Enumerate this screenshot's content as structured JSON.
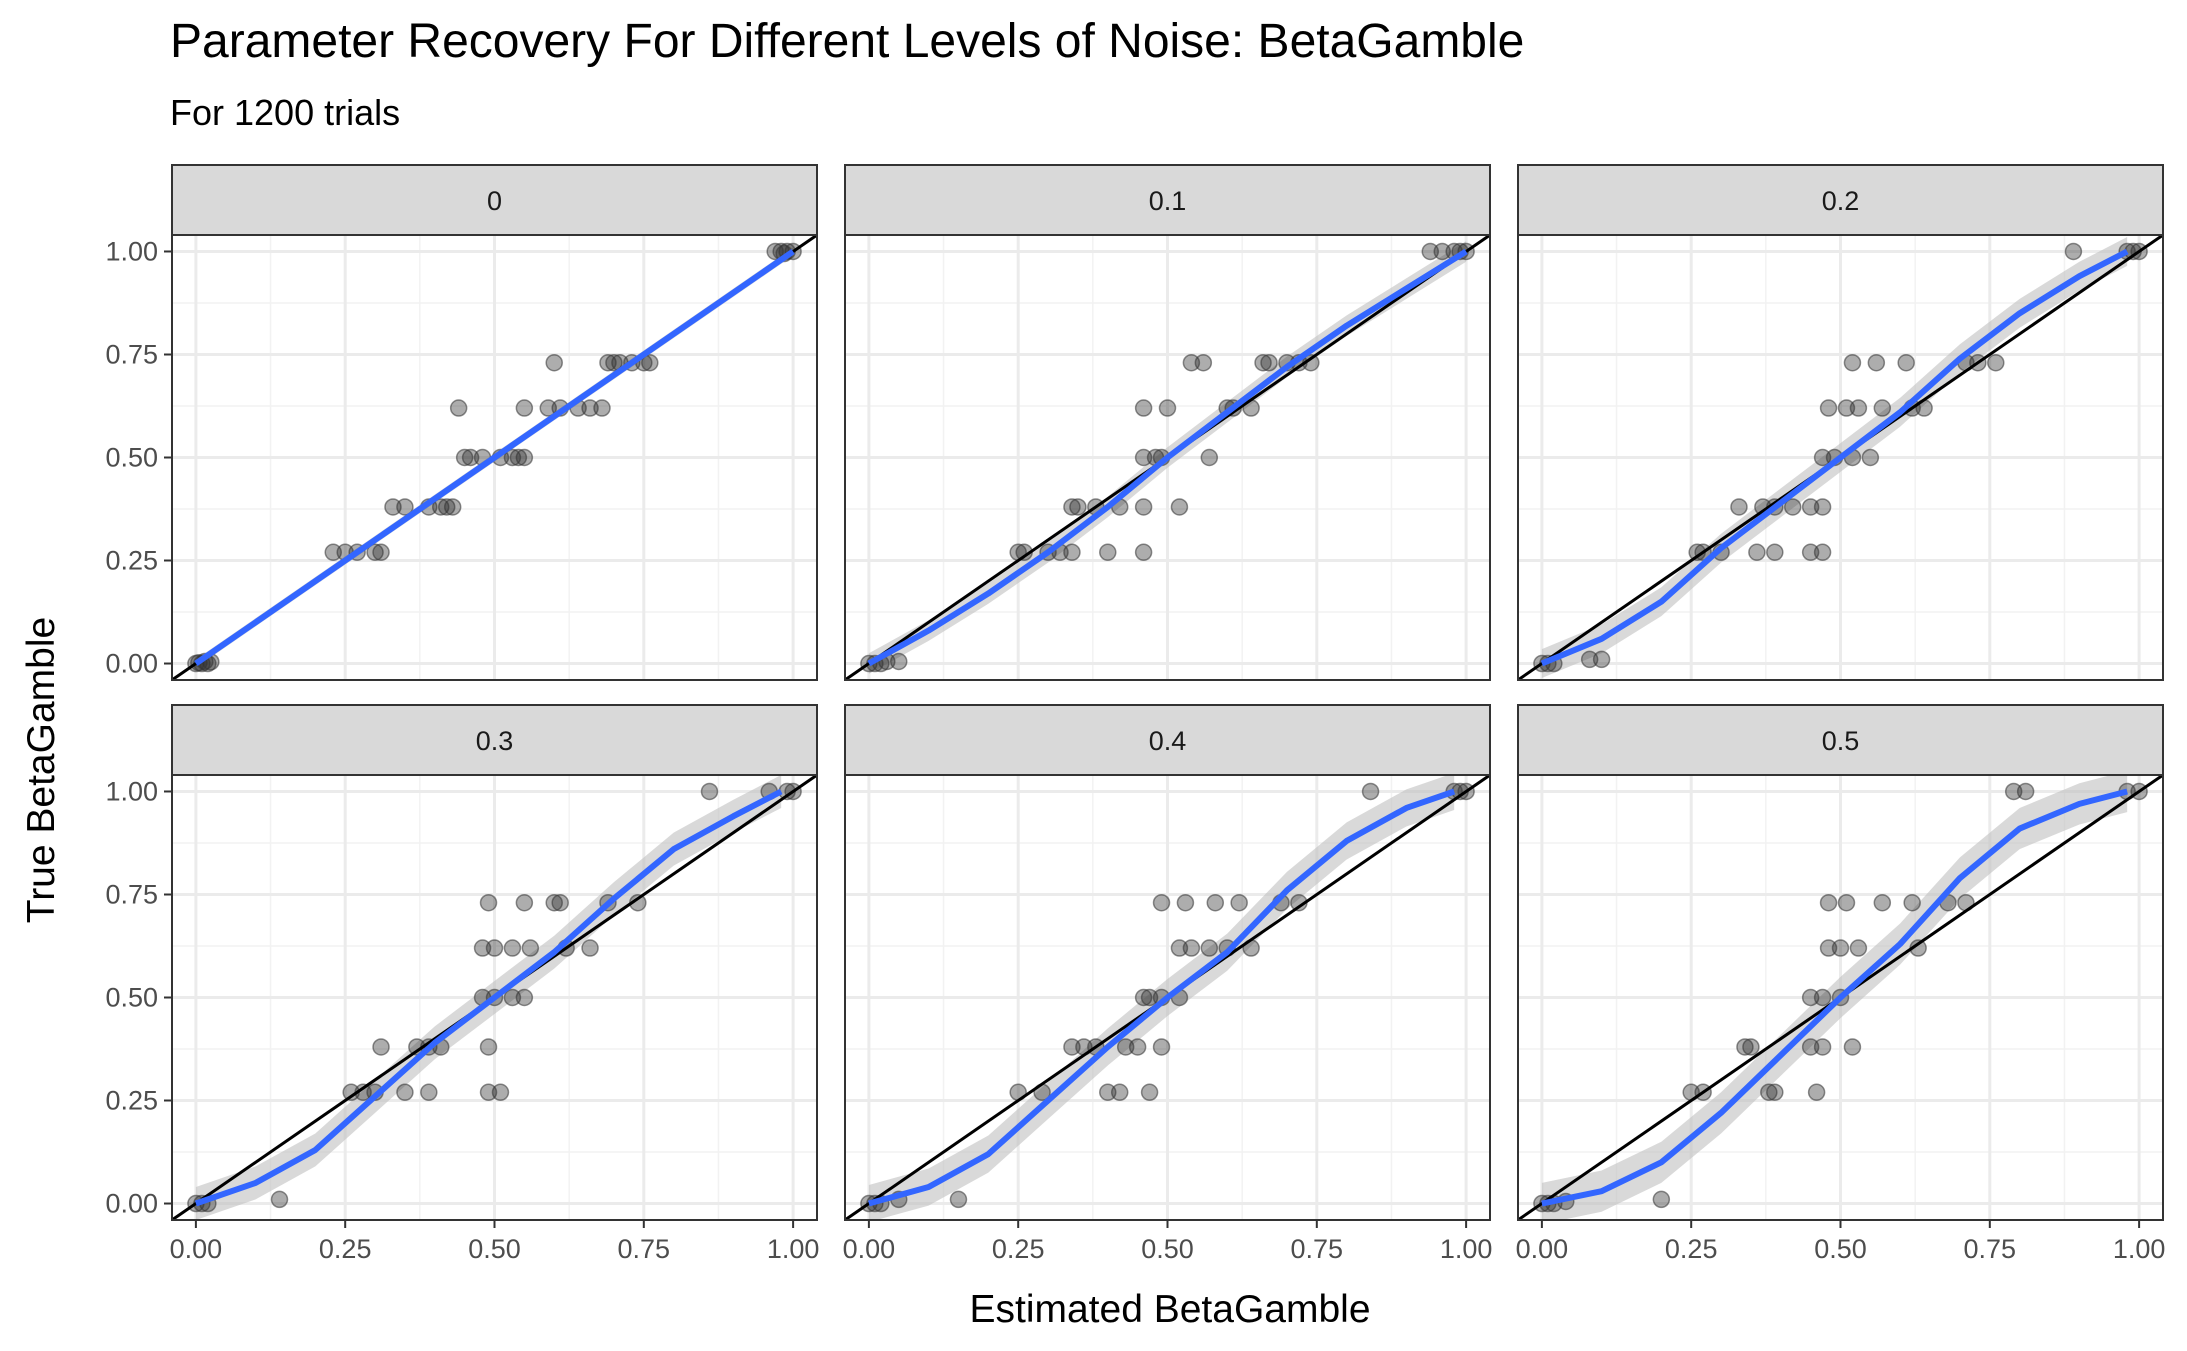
{
  "chart_data": {
    "type": "scatter",
    "title": "Parameter Recovery For Different Levels of Noise: BetaGamble",
    "subtitle": "For 1200 trials",
    "xlabel": "Estimated BetaGamble",
    "ylabel": "True BetaGamble",
    "xlim": [
      -0.04,
      1.04
    ],
    "ylim": [
      -0.04,
      1.04
    ],
    "xticks": [
      "0.00",
      "0.25",
      "0.50",
      "0.75",
      "1.00"
    ],
    "yticks": [
      "0.00",
      "0.25",
      "0.50",
      "0.75",
      "1.00"
    ],
    "grid": true,
    "reference_line": "identity",
    "colors": {
      "points": "#333333",
      "smooth": "#3366FF",
      "band": "#bfbfbf",
      "identity": "#000000",
      "strip": "#d9d9d9"
    },
    "panels": [
      {
        "label": "0",
        "points": [
          [
            0.0,
            0.0
          ],
          [
            0.01,
            0.0
          ],
          [
            0.02,
            0.0
          ],
          [
            0.015,
            0.005
          ],
          [
            0.005,
            0.002
          ],
          [
            0.025,
            0.004
          ],
          [
            0.23,
            0.27
          ],
          [
            0.25,
            0.27
          ],
          [
            0.27,
            0.27
          ],
          [
            0.3,
            0.27
          ],
          [
            0.31,
            0.27
          ],
          [
            0.33,
            0.38
          ],
          [
            0.35,
            0.38
          ],
          [
            0.39,
            0.38
          ],
          [
            0.41,
            0.38
          ],
          [
            0.42,
            0.38
          ],
          [
            0.43,
            0.38
          ],
          [
            0.45,
            0.5
          ],
          [
            0.46,
            0.5
          ],
          [
            0.48,
            0.5
          ],
          [
            0.51,
            0.5
          ],
          [
            0.53,
            0.5
          ],
          [
            0.54,
            0.5
          ],
          [
            0.55,
            0.5
          ],
          [
            0.44,
            0.62
          ],
          [
            0.55,
            0.62
          ],
          [
            0.59,
            0.62
          ],
          [
            0.61,
            0.62
          ],
          [
            0.64,
            0.62
          ],
          [
            0.66,
            0.62
          ],
          [
            0.68,
            0.62
          ],
          [
            0.6,
            0.73
          ],
          [
            0.69,
            0.73
          ],
          [
            0.7,
            0.73
          ],
          [
            0.71,
            0.73
          ],
          [
            0.73,
            0.73
          ],
          [
            0.75,
            0.73
          ],
          [
            0.76,
            0.73
          ],
          [
            0.97,
            1.0
          ],
          [
            0.98,
            1.0
          ],
          [
            0.99,
            1.0
          ],
          [
            1.0,
            1.0
          ],
          [
            0.985,
            0.995
          ]
        ],
        "smooth": [
          [
            0.0,
            0.0
          ],
          [
            0.25,
            0.25
          ],
          [
            0.5,
            0.5
          ],
          [
            0.75,
            0.75
          ],
          [
            1.0,
            1.0
          ]
        ],
        "band": 0.01
      },
      {
        "label": "0.1",
        "points": [
          [
            0.0,
            0.0
          ],
          [
            0.01,
            0.0
          ],
          [
            0.02,
            0.0
          ],
          [
            0.03,
            0.005
          ],
          [
            0.05,
            0.005
          ],
          [
            0.25,
            0.27
          ],
          [
            0.26,
            0.27
          ],
          [
            0.3,
            0.27
          ],
          [
            0.32,
            0.27
          ],
          [
            0.34,
            0.27
          ],
          [
            0.4,
            0.27
          ],
          [
            0.46,
            0.27
          ],
          [
            0.34,
            0.38
          ],
          [
            0.35,
            0.38
          ],
          [
            0.38,
            0.38
          ],
          [
            0.42,
            0.38
          ],
          [
            0.46,
            0.38
          ],
          [
            0.52,
            0.38
          ],
          [
            0.46,
            0.5
          ],
          [
            0.48,
            0.5
          ],
          [
            0.49,
            0.5
          ],
          [
            0.57,
            0.5
          ],
          [
            0.46,
            0.62
          ],
          [
            0.5,
            0.62
          ],
          [
            0.6,
            0.62
          ],
          [
            0.61,
            0.62
          ],
          [
            0.64,
            0.62
          ],
          [
            0.54,
            0.73
          ],
          [
            0.56,
            0.73
          ],
          [
            0.66,
            0.73
          ],
          [
            0.67,
            0.73
          ],
          [
            0.7,
            0.73
          ],
          [
            0.72,
            0.73
          ],
          [
            0.74,
            0.73
          ],
          [
            0.94,
            1.0
          ],
          [
            0.96,
            1.0
          ],
          [
            0.98,
            1.0
          ],
          [
            0.99,
            1.0
          ],
          [
            1.0,
            1.0
          ]
        ],
        "smooth": [
          [
            0.0,
            0.0
          ],
          [
            0.1,
            0.08
          ],
          [
            0.2,
            0.17
          ],
          [
            0.3,
            0.27
          ],
          [
            0.4,
            0.38
          ],
          [
            0.5,
            0.5
          ],
          [
            0.6,
            0.61
          ],
          [
            0.7,
            0.72
          ],
          [
            0.8,
            0.82
          ],
          [
            0.9,
            0.91
          ],
          [
            1.0,
            1.0
          ]
        ],
        "band": 0.025
      },
      {
        "label": "0.2",
        "points": [
          [
            0.0,
            0.0
          ],
          [
            0.01,
            0.0
          ],
          [
            0.02,
            0.0
          ],
          [
            0.08,
            0.01
          ],
          [
            0.1,
            0.01
          ],
          [
            0.26,
            0.27
          ],
          [
            0.27,
            0.27
          ],
          [
            0.3,
            0.27
          ],
          [
            0.36,
            0.27
          ],
          [
            0.39,
            0.27
          ],
          [
            0.45,
            0.27
          ],
          [
            0.47,
            0.27
          ],
          [
            0.33,
            0.38
          ],
          [
            0.37,
            0.38
          ],
          [
            0.39,
            0.38
          ],
          [
            0.42,
            0.38
          ],
          [
            0.45,
            0.38
          ],
          [
            0.47,
            0.38
          ],
          [
            0.47,
            0.5
          ],
          [
            0.49,
            0.5
          ],
          [
            0.52,
            0.5
          ],
          [
            0.55,
            0.5
          ],
          [
            0.48,
            0.62
          ],
          [
            0.51,
            0.62
          ],
          [
            0.53,
            0.62
          ],
          [
            0.57,
            0.62
          ],
          [
            0.62,
            0.62
          ],
          [
            0.64,
            0.62
          ],
          [
            0.52,
            0.73
          ],
          [
            0.56,
            0.73
          ],
          [
            0.61,
            0.73
          ],
          [
            0.71,
            0.73
          ],
          [
            0.73,
            0.73
          ],
          [
            0.76,
            0.73
          ],
          [
            0.89,
            1.0
          ],
          [
            0.98,
            1.0
          ],
          [
            0.99,
            1.0
          ],
          [
            1.0,
            1.0
          ]
        ],
        "smooth": [
          [
            0.0,
            0.0
          ],
          [
            0.1,
            0.06
          ],
          [
            0.2,
            0.15
          ],
          [
            0.3,
            0.28
          ],
          [
            0.4,
            0.39
          ],
          [
            0.5,
            0.5
          ],
          [
            0.6,
            0.61
          ],
          [
            0.7,
            0.74
          ],
          [
            0.8,
            0.85
          ],
          [
            0.9,
            0.94
          ],
          [
            0.98,
            1.0
          ]
        ],
        "band": 0.035
      },
      {
        "label": "0.3",
        "points": [
          [
            0.0,
            0.0
          ],
          [
            0.01,
            0.0
          ],
          [
            0.02,
            0.0
          ],
          [
            0.14,
            0.01
          ],
          [
            0.26,
            0.27
          ],
          [
            0.28,
            0.27
          ],
          [
            0.3,
            0.27
          ],
          [
            0.35,
            0.27
          ],
          [
            0.39,
            0.27
          ],
          [
            0.49,
            0.27
          ],
          [
            0.51,
            0.27
          ],
          [
            0.31,
            0.38
          ],
          [
            0.37,
            0.38
          ],
          [
            0.39,
            0.38
          ],
          [
            0.41,
            0.38
          ],
          [
            0.49,
            0.38
          ],
          [
            0.48,
            0.5
          ],
          [
            0.5,
            0.5
          ],
          [
            0.53,
            0.5
          ],
          [
            0.55,
            0.5
          ],
          [
            0.48,
            0.62
          ],
          [
            0.5,
            0.62
          ],
          [
            0.53,
            0.62
          ],
          [
            0.56,
            0.62
          ],
          [
            0.62,
            0.62
          ],
          [
            0.66,
            0.62
          ],
          [
            0.49,
            0.73
          ],
          [
            0.55,
            0.73
          ],
          [
            0.6,
            0.73
          ],
          [
            0.61,
            0.73
          ],
          [
            0.69,
            0.73
          ],
          [
            0.74,
            0.73
          ],
          [
            0.86,
            1.0
          ],
          [
            0.96,
            1.0
          ],
          [
            0.99,
            1.0
          ],
          [
            1.0,
            1.0
          ]
        ],
        "smooth": [
          [
            0.0,
            0.0
          ],
          [
            0.1,
            0.05
          ],
          [
            0.2,
            0.13
          ],
          [
            0.3,
            0.26
          ],
          [
            0.4,
            0.39
          ],
          [
            0.5,
            0.5
          ],
          [
            0.6,
            0.61
          ],
          [
            0.7,
            0.74
          ],
          [
            0.8,
            0.86
          ],
          [
            0.9,
            0.94
          ],
          [
            0.98,
            1.0
          ]
        ],
        "band": 0.04
      },
      {
        "label": "0.4",
        "points": [
          [
            0.0,
            0.0
          ],
          [
            0.01,
            0.0
          ],
          [
            0.02,
            0.0
          ],
          [
            0.05,
            0.01
          ],
          [
            0.15,
            0.01
          ],
          [
            0.25,
            0.27
          ],
          [
            0.29,
            0.27
          ],
          [
            0.4,
            0.27
          ],
          [
            0.42,
            0.27
          ],
          [
            0.47,
            0.27
          ],
          [
            0.34,
            0.38
          ],
          [
            0.36,
            0.38
          ],
          [
            0.38,
            0.38
          ],
          [
            0.43,
            0.38
          ],
          [
            0.45,
            0.38
          ],
          [
            0.49,
            0.38
          ],
          [
            0.46,
            0.5
          ],
          [
            0.47,
            0.5
          ],
          [
            0.49,
            0.5
          ],
          [
            0.52,
            0.5
          ],
          [
            0.52,
            0.62
          ],
          [
            0.54,
            0.62
          ],
          [
            0.57,
            0.62
          ],
          [
            0.6,
            0.62
          ],
          [
            0.64,
            0.62
          ],
          [
            0.49,
            0.73
          ],
          [
            0.53,
            0.73
          ],
          [
            0.58,
            0.73
          ],
          [
            0.62,
            0.73
          ],
          [
            0.69,
            0.73
          ],
          [
            0.72,
            0.73
          ],
          [
            0.84,
            1.0
          ],
          [
            0.98,
            1.0
          ],
          [
            0.99,
            1.0
          ],
          [
            1.0,
            1.0
          ]
        ],
        "smooth": [
          [
            0.0,
            0.0
          ],
          [
            0.1,
            0.04
          ],
          [
            0.2,
            0.12
          ],
          [
            0.3,
            0.25
          ],
          [
            0.4,
            0.38
          ],
          [
            0.5,
            0.5
          ],
          [
            0.6,
            0.61
          ],
          [
            0.7,
            0.76
          ],
          [
            0.8,
            0.88
          ],
          [
            0.9,
            0.96
          ],
          [
            0.98,
            1.0
          ]
        ],
        "band": 0.045
      },
      {
        "label": "0.5",
        "points": [
          [
            0.0,
            0.0
          ],
          [
            0.01,
            0.0
          ],
          [
            0.02,
            0.0
          ],
          [
            0.04,
            0.005
          ],
          [
            0.2,
            0.01
          ],
          [
            0.25,
            0.27
          ],
          [
            0.27,
            0.27
          ],
          [
            0.38,
            0.27
          ],
          [
            0.39,
            0.27
          ],
          [
            0.46,
            0.27
          ],
          [
            0.34,
            0.38
          ],
          [
            0.35,
            0.38
          ],
          [
            0.45,
            0.38
          ],
          [
            0.47,
            0.38
          ],
          [
            0.52,
            0.38
          ],
          [
            0.45,
            0.5
          ],
          [
            0.47,
            0.5
          ],
          [
            0.5,
            0.5
          ],
          [
            0.48,
            0.62
          ],
          [
            0.5,
            0.62
          ],
          [
            0.53,
            0.62
          ],
          [
            0.63,
            0.62
          ],
          [
            0.48,
            0.73
          ],
          [
            0.51,
            0.73
          ],
          [
            0.57,
            0.73
          ],
          [
            0.62,
            0.73
          ],
          [
            0.68,
            0.73
          ],
          [
            0.71,
            0.73
          ],
          [
            0.79,
            1.0
          ],
          [
            0.81,
            1.0
          ],
          [
            0.98,
            1.0
          ],
          [
            1.0,
            1.0
          ]
        ],
        "smooth": [
          [
            0.0,
            0.0
          ],
          [
            0.1,
            0.03
          ],
          [
            0.2,
            0.1
          ],
          [
            0.3,
            0.22
          ],
          [
            0.4,
            0.36
          ],
          [
            0.5,
            0.5
          ],
          [
            0.6,
            0.63
          ],
          [
            0.7,
            0.79
          ],
          [
            0.8,
            0.91
          ],
          [
            0.9,
            0.97
          ],
          [
            0.98,
            1.0
          ]
        ],
        "band": 0.05
      }
    ]
  }
}
